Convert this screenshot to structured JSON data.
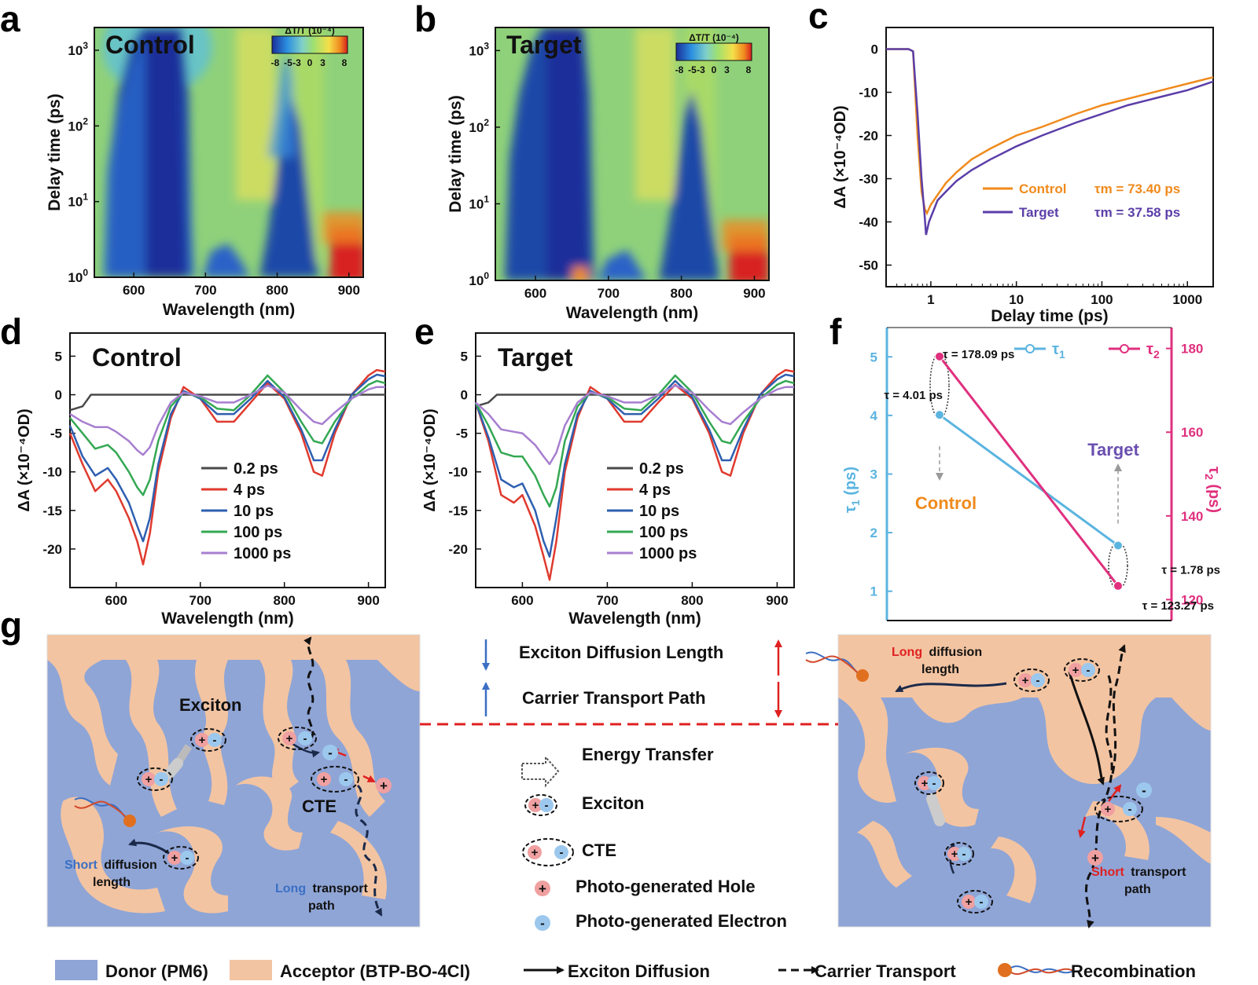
{
  "panel_letters": [
    "a",
    "b",
    "c",
    "d",
    "e",
    "f",
    "g"
  ],
  "chart_data": [
    {
      "panel": "a",
      "type": "heatmap",
      "title": "Control",
      "xlabel": "Wavelength (nm)",
      "ylabel": "Delay time (ps)",
      "x_ticks": [
        "600",
        "700",
        "800",
        "900"
      ],
      "x_tick_values": [
        600,
        700,
        800,
        900
      ],
      "xlim": [
        545,
        920
      ],
      "y_scale": "log",
      "y_ticks": [
        "10^0",
        "10^1",
        "10^2",
        "10^3"
      ],
      "y_tick_labels": {
        "base": "10",
        "exponents": [
          "0",
          "1",
          "2",
          "3"
        ]
      },
      "ylim": [
        1,
        2000
      ],
      "colorbar": {
        "title": "ΔT/T (10⁻⁴)",
        "ticks": [
          "-8",
          "-5",
          "-3",
          "0",
          "3",
          "8"
        ],
        "range": [
          -8,
          8
        ]
      },
      "features": [
        {
          "wl": [
            555,
            655
          ],
          "t": [
            1,
            2000
          ],
          "value": -8
        },
        {
          "wl": [
            715,
            775
          ],
          "t": [
            1,
            1.6
          ],
          "value": -6
        },
        {
          "wl": [
            780,
            860
          ],
          "t": [
            1,
            20
          ],
          "value": -8
        },
        {
          "wl": [
            880,
            920
          ],
          "t": [
            1,
            3
          ],
          "value": 8
        }
      ]
    },
    {
      "panel": "b",
      "type": "heatmap",
      "title": "Target",
      "xlabel": "Wavelength (nm)",
      "ylabel": "Delay time (ps)",
      "x_ticks": [
        "600",
        "700",
        "800",
        "900"
      ],
      "x_tick_values": [
        600,
        700,
        800,
        900
      ],
      "xlim": [
        545,
        920
      ],
      "y_scale": "log",
      "y_tick_labels": {
        "base": "10",
        "exponents": [
          "0",
          "1",
          "2",
          "3"
        ]
      },
      "ylim": [
        1,
        2000
      ],
      "colorbar": {
        "title": "ΔT/T (10⁻⁴)",
        "ticks": [
          "-8",
          "-5",
          "-3",
          "0",
          "3",
          "8"
        ],
        "range": [
          -8,
          8
        ]
      }
    },
    {
      "panel": "c",
      "type": "line",
      "xlabel": "Delay time (ps)",
      "ylabel": "ΔA (×10⁻⁴OD)",
      "x_scale": "log",
      "xlim": [
        0.3,
        2000
      ],
      "ylim": [
        -55,
        5
      ],
      "x_ticks": [
        "1",
        "10",
        "100",
        "1000"
      ],
      "x_tick_values": [
        1,
        10,
        100,
        1000
      ],
      "y_ticks": [
        "0",
        "-10",
        "-20",
        "-30",
        "-40",
        "-50"
      ],
      "y_tick_values": [
        0,
        -10,
        -20,
        -30,
        -40,
        -50
      ],
      "legend_placement": "center-right",
      "series": [
        {
          "name": "Control",
          "color": "#f08a1c",
          "annotation": "τm = 73.40 ps",
          "x": [
            0.3,
            0.55,
            0.62,
            0.7,
            0.78,
            0.85,
            0.9,
            1,
            1.5,
            2,
            3,
            5,
            10,
            20,
            50,
            100,
            200,
            500,
            1000,
            2000
          ],
          "y": [
            0,
            0,
            -0.5,
            -20,
            -33,
            -37,
            -38,
            -36,
            -31,
            -28.5,
            -25.5,
            -23,
            -20,
            -18,
            -15,
            -13,
            -11.5,
            -9.5,
            -8,
            -6.5
          ]
        },
        {
          "name": "Target",
          "color": "#5b3ea8",
          "annotation": "τm = 37.58 ps",
          "x": [
            0.3,
            0.55,
            0.62,
            0.7,
            0.78,
            0.85,
            0.88,
            0.95,
            1.2,
            1.5,
            2,
            3,
            5,
            10,
            20,
            50,
            100,
            200,
            500,
            1000,
            2000
          ],
          "y": [
            0,
            0,
            -0.5,
            -15,
            -30,
            -39,
            -43,
            -40,
            -35,
            -33,
            -30.5,
            -28,
            -25.5,
            -22.5,
            -20,
            -17,
            -15,
            -13,
            -11,
            -9.5,
            -7.5
          ]
        }
      ]
    },
    {
      "panel": "d",
      "type": "line",
      "title": "Control",
      "xlabel": "Wavelength (nm)",
      "ylabel": "ΔA (×10⁻⁴OD)",
      "xlim": [
        545,
        920
      ],
      "ylim": [
        -25,
        8
      ],
      "x_ticks": [
        "600",
        "700",
        "800",
        "900"
      ],
      "x_tick_values": [
        600,
        700,
        800,
        900
      ],
      "y_ticks": [
        "5",
        "0",
        "-5",
        "-10",
        "-15",
        "-20"
      ],
      "y_tick_values": [
        5,
        0,
        -5,
        -10,
        -15,
        -20
      ],
      "legend_placement": "center",
      "series": [
        {
          "name": "0.2 ps",
          "color": "#4a4a4a",
          "x": [
            545,
            560,
            570,
            590,
            620,
            660,
            700,
            760,
            800,
            860,
            900,
            920
          ],
          "y": [
            -2,
            -1.5,
            0,
            0,
            0,
            0,
            0,
            0,
            0,
            0,
            0,
            0
          ]
        },
        {
          "name": "4 ps",
          "color": "#e03a2e",
          "x": [
            545,
            560,
            575,
            590,
            600,
            615,
            625,
            632,
            640,
            650,
            665,
            680,
            700,
            720,
            740,
            760,
            780,
            800,
            820,
            835,
            845,
            860,
            880,
            900,
            910,
            920
          ],
          "y": [
            -5,
            -9,
            -12.5,
            -11,
            -12.5,
            -16,
            -19,
            -22,
            -18,
            -10,
            -3,
            1,
            -0.5,
            -3.5,
            -3.5,
            -1,
            1.5,
            -0.5,
            -5,
            -10,
            -10.5,
            -5,
            0,
            2.5,
            3.2,
            3
          ]
        },
        {
          "name": "10 ps",
          "color": "#2e5fb0",
          "x": [
            545,
            560,
            575,
            590,
            600,
            615,
            625,
            632,
            640,
            650,
            665,
            680,
            700,
            720,
            740,
            760,
            780,
            800,
            820,
            835,
            845,
            860,
            880,
            900,
            910,
            920
          ],
          "y": [
            -4,
            -8,
            -10.5,
            -9.5,
            -11,
            -14,
            -17,
            -19,
            -16,
            -9,
            -2.5,
            0.5,
            -0.5,
            -2.5,
            -2.5,
            -0.5,
            1.8,
            -0.3,
            -4.5,
            -8.5,
            -8.5,
            -4.5,
            0,
            2,
            2.6,
            2.4
          ]
        },
        {
          "name": "100 ps",
          "color": "#34a853",
          "x": [
            545,
            560,
            575,
            590,
            600,
            615,
            625,
            632,
            640,
            650,
            665,
            680,
            700,
            720,
            740,
            760,
            780,
            800,
            820,
            835,
            845,
            860,
            880,
            900,
            910,
            920
          ],
          "y": [
            -3,
            -5,
            -7,
            -6.5,
            -7.5,
            -10,
            -12,
            -13,
            -11,
            -6,
            -1.5,
            0.3,
            -0.3,
            -1.8,
            -2,
            0,
            2.5,
            0.3,
            -3.5,
            -6,
            -6.3,
            -3.5,
            -0.5,
            1.3,
            1.8,
            1.5
          ]
        },
        {
          "name": "1000 ps",
          "color": "#a77fd0",
          "x": [
            545,
            560,
            575,
            590,
            600,
            615,
            625,
            632,
            640,
            650,
            665,
            680,
            700,
            720,
            740,
            760,
            780,
            800,
            820,
            835,
            845,
            860,
            880,
            900,
            910,
            920
          ],
          "y": [
            -2.5,
            -3.5,
            -4.2,
            -4.2,
            -4.8,
            -6,
            -7.2,
            -7.8,
            -6.8,
            -4,
            -1,
            0.3,
            -0.2,
            -1,
            -1,
            0,
            1.2,
            0.3,
            -2,
            -3.5,
            -3.8,
            -2.3,
            -0.5,
            0.7,
            1,
            1
          ]
        }
      ]
    },
    {
      "panel": "e",
      "type": "line",
      "title": "Target",
      "xlabel": "Wavelength (nm)",
      "ylabel": "ΔA (×10⁻⁴OD)",
      "xlim": [
        545,
        920
      ],
      "ylim": [
        -25,
        8
      ],
      "x_ticks": [
        "600",
        "700",
        "800",
        "900"
      ],
      "x_tick_values": [
        600,
        700,
        800,
        900
      ],
      "y_ticks": [
        "5",
        "0",
        "-5",
        "-10",
        "-15",
        "-20"
      ],
      "y_tick_values": [
        5,
        0,
        -5,
        -10,
        -15,
        -20
      ],
      "legend_placement": "center",
      "series": [
        {
          "name": "0.2 ps",
          "color": "#4a4a4a",
          "x": [
            545,
            560,
            570,
            590,
            620,
            660,
            700,
            760,
            800,
            860,
            900,
            920
          ],
          "y": [
            -1.5,
            -1,
            0,
            0,
            0,
            0,
            0,
            0,
            0,
            0,
            0,
            0
          ]
        },
        {
          "name": "4 ps",
          "color": "#e03a2e",
          "x": [
            545,
            560,
            575,
            590,
            600,
            615,
            625,
            632,
            640,
            650,
            665,
            680,
            700,
            720,
            740,
            760,
            780,
            800,
            820,
            835,
            845,
            860,
            880,
            900,
            910,
            920
          ],
          "y": [
            -1,
            -6,
            -13,
            -14,
            -13,
            -17,
            -21,
            -24,
            -19,
            -10,
            -3,
            1,
            -0.5,
            -3.5,
            -3.5,
            -1,
            1.3,
            -0.5,
            -5,
            -10,
            -10.5,
            -5,
            0,
            2.5,
            3.2,
            3
          ]
        },
        {
          "name": "10 ps",
          "color": "#2e5fb0",
          "x": [
            545,
            560,
            575,
            590,
            600,
            615,
            625,
            632,
            640,
            650,
            665,
            680,
            700,
            720,
            740,
            760,
            780,
            800,
            820,
            835,
            845,
            860,
            880,
            900,
            910,
            920
          ],
          "y": [
            -1,
            -5.5,
            -11,
            -12,
            -11.5,
            -15,
            -19,
            -21,
            -16,
            -9,
            -2.5,
            0.5,
            -0.5,
            -2.5,
            -2.5,
            -0.5,
            1.8,
            -0.3,
            -4.5,
            -8.5,
            -8.5,
            -4.5,
            0,
            2,
            2.6,
            2.4
          ]
        },
        {
          "name": "100 ps",
          "color": "#34a853",
          "x": [
            545,
            560,
            575,
            590,
            600,
            615,
            625,
            632,
            640,
            650,
            665,
            680,
            700,
            720,
            740,
            760,
            780,
            800,
            820,
            835,
            845,
            860,
            880,
            900,
            910,
            920
          ],
          "y": [
            -1,
            -4,
            -7.5,
            -8,
            -8,
            -10.5,
            -13,
            -14.5,
            -12,
            -6,
            -1.5,
            0.3,
            -0.3,
            -1.8,
            -2,
            0,
            2.5,
            0.3,
            -3.5,
            -6,
            -6.3,
            -3.5,
            -0.5,
            1.3,
            1.8,
            1.5
          ]
        },
        {
          "name": "1000 ps",
          "color": "#a77fd0",
          "x": [
            545,
            560,
            575,
            590,
            600,
            615,
            625,
            632,
            640,
            650,
            665,
            680,
            700,
            720,
            740,
            760,
            780,
            800,
            820,
            835,
            845,
            860,
            880,
            900,
            910,
            920
          ],
          "y": [
            -1,
            -2.5,
            -4.5,
            -4.8,
            -5,
            -6.5,
            -8,
            -9,
            -7.5,
            -4,
            -1,
            0.3,
            -0.2,
            -1,
            -1,
            0,
            1.2,
            0.3,
            -2,
            -3.5,
            -3.8,
            -2.3,
            -0.5,
            0.7,
            1,
            1
          ]
        }
      ]
    },
    {
      "panel": "f",
      "type": "line",
      "categories": [
        "Control",
        "Target"
      ],
      "y1_label": "τ1 (ps)",
      "y2_label": "τ2 (ps)",
      "y1lim": [
        0.5,
        5.5
      ],
      "y2lim": [
        115,
        185
      ],
      "y1_ticks": [
        "1",
        "2",
        "3",
        "4",
        "5"
      ],
      "y1_tick_values": [
        1,
        2,
        3,
        4,
        5
      ],
      "y2_ticks": [
        "120",
        "140",
        "160",
        "180"
      ],
      "y2_tick_values": [
        120,
        140,
        160,
        180
      ],
      "legend_placement": "top",
      "series": [
        {
          "name": "τ1",
          "axis": "left",
          "color": "#5bb4e0",
          "values": [
            4.01,
            1.78
          ],
          "point_labels": [
            "τ = 4.01 ps",
            "τ = 1.78 ps"
          ]
        },
        {
          "name": "τ2",
          "axis": "right",
          "color": "#e0307e",
          "values": [
            178.09,
            123.27
          ],
          "point_labels": [
            "τ = 178.09 ps",
            "τ = 123.27 ps"
          ]
        }
      ],
      "category_labels": [
        {
          "text": "Control",
          "color": "#f08a1c"
        },
        {
          "text": "Target",
          "color": "#6a4fb0"
        }
      ]
    }
  ],
  "diagram_g": {
    "left": {
      "exciton_label": "Exciton",
      "cte_label": "CTE",
      "short_word": "Short",
      "short_rest": "diffusion",
      "short_line2": "length",
      "long_word": "Long",
      "long_rest": "transport",
      "long_line2": "path"
    },
    "right": {
      "long_word": "Long",
      "long_rest": "diffusion",
      "long_line2": "length",
      "short_word": "Short",
      "short_rest": "transport",
      "short_line2": "path"
    },
    "middle": {
      "exciton_diffusion_length": "Exciton Diffusion Length",
      "carrier_transport_path": "Carrier Transport Path",
      "energy_transfer": "Energy Transfer",
      "exciton": "Exciton",
      "cte": "CTE",
      "hole": "Photo-generated Hole",
      "electron": "Photo-generated Electron"
    },
    "legend": {
      "donor": "Donor (PM6)",
      "acceptor": "Acceptor (BTP-BO-4Cl)",
      "exciton_diffusion": "Exciton Diffusion",
      "carrier_transport": "Carrier Transport",
      "recombination": "Recombination"
    },
    "colors": {
      "donor": "#8fa5d6",
      "acceptor": "#f3c4a2",
      "blue_text": "#3a6fc4",
      "red_text": "#e02020"
    }
  }
}
